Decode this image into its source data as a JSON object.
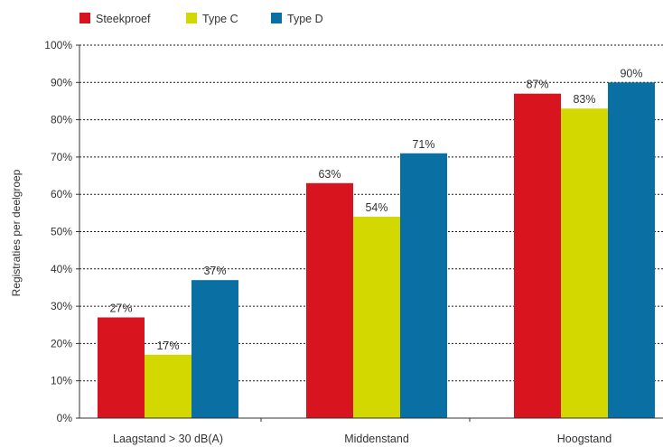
{
  "chart_data": {
    "type": "bar",
    "title": "",
    "xlabel": "",
    "ylabel": "Registraties per deelgroep",
    "ylim": [
      0,
      100
    ],
    "yticks": [
      "0%",
      "10%",
      "20%",
      "30%",
      "40%",
      "50%",
      "60%",
      "70%",
      "80%",
      "90%",
      "100%"
    ],
    "categories": [
      "Laagstand > 30 dB(A)",
      "Middenstand",
      "Hoogstand"
    ],
    "series": [
      {
        "name": "Steekproef",
        "color": "#d8141f",
        "values": [
          27,
          63,
          87
        ],
        "labels": [
          "27%",
          "63%",
          "87%"
        ]
      },
      {
        "name": "Type C",
        "color": "#d2d800",
        "values": [
          17,
          54,
          83
        ],
        "labels": [
          "17%",
          "54%",
          "83%"
        ]
      },
      {
        "name": "Type D",
        "color": "#0a6fa3",
        "values": [
          37,
          71,
          90
        ],
        "labels": [
          "37%",
          "71%",
          "90%"
        ]
      }
    ],
    "grid": true,
    "legend_position": "top-left"
  }
}
